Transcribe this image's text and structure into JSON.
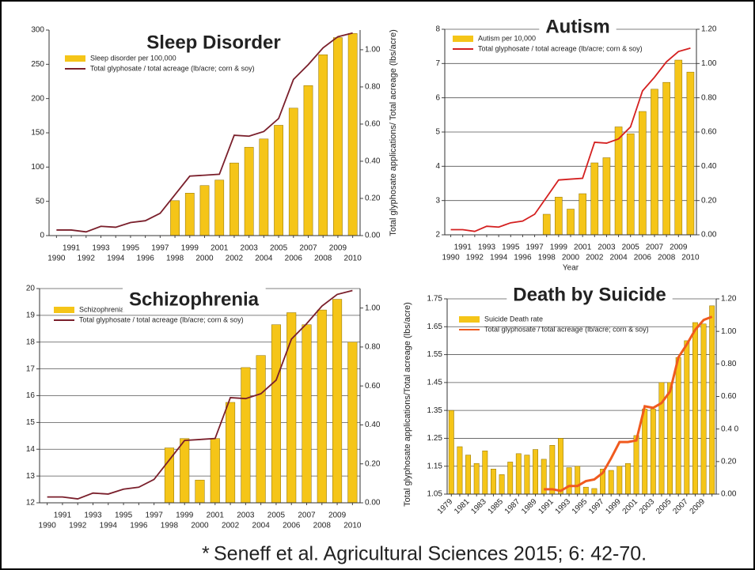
{
  "chart_data": [
    {
      "type": "combo",
      "title": "Sleep Disorder",
      "categories": [
        "1990",
        "1991",
        "1992",
        "1993",
        "1994",
        "1995",
        "1996",
        "1997",
        "1998",
        "1999",
        "2000",
        "2001",
        "2002",
        "2003",
        "2004",
        "2005",
        "2006",
        "2007",
        "2008",
        "2009",
        "2010"
      ],
      "series": [
        {
          "name": "Sleep disorder per 100,000",
          "type": "bar",
          "color": "#f5c518",
          "values": [
            null,
            null,
            null,
            null,
            null,
            null,
            null,
            null,
            51,
            62,
            73,
            81,
            106,
            129,
            141,
            161,
            186,
            219,
            264,
            289,
            295
          ]
        },
        {
          "name": "Total glyphosate / total acreage (lb/acre; corn & soy)",
          "type": "line",
          "axis": "y2",
          "color": "#7a1f2b",
          "values": [
            0.03,
            0.03,
            0.02,
            0.05,
            0.045,
            0.07,
            0.08,
            0.12,
            0.22,
            0.32,
            0.325,
            0.33,
            0.54,
            0.535,
            0.56,
            0.63,
            0.84,
            0.92,
            1.01,
            1.07,
            1.09
          ]
        }
      ],
      "y2_label": "Total glyphosate applications/ Total acreage (lbs/acre)",
      "ylim": [
        0,
        300
      ],
      "yticks": [
        0,
        50,
        100,
        150,
        200,
        250,
        300
      ],
      "y2lim": [
        0,
        1.106
      ],
      "y2ticks": [
        {
          "value": 0,
          "label": "0.00"
        },
        {
          "value": 0.2,
          "label": "0.20"
        },
        {
          "value": 0.4,
          "label": "0.40"
        },
        {
          "value": 0.6,
          "label": "0.60"
        },
        {
          "value": 0.8,
          "label": "0.80"
        },
        {
          "value": 1,
          "label": "1.00"
        }
      ],
      "grid": false
    },
    {
      "type": "combo",
      "title": "Autism",
      "categories": [
        "1990",
        "1991",
        "1992",
        "1993",
        "1994",
        "1995",
        "1996",
        "1997",
        "1998",
        "1999",
        "2000",
        "2001",
        "2002",
        "2003",
        "2004",
        "2005",
        "2006",
        "2007",
        "2008",
        "2009",
        "2010"
      ],
      "series": [
        {
          "name": "Autism per 10,000",
          "type": "bar",
          "color": "#f5c518",
          "values": [
            null,
            null,
            null,
            null,
            null,
            null,
            null,
            null,
            2.6,
            3.1,
            2.75,
            3.2,
            4.1,
            4.25,
            5.15,
            4.95,
            5.6,
            6.25,
            6.45,
            7.1,
            6.75
          ]
        },
        {
          "name": "Total glyphosate / total acreage (lb/acre; corn & soy)",
          "type": "line",
          "axis": "y2",
          "color": "#d42020",
          "values": [
            0.03,
            0.03,
            0.02,
            0.05,
            0.045,
            0.07,
            0.08,
            0.12,
            0.22,
            0.32,
            0.325,
            0.33,
            0.54,
            0.535,
            0.56,
            0.63,
            0.84,
            0.92,
            1.01,
            1.07,
            1.09
          ]
        }
      ],
      "x_label": "Year",
      "ylim": [
        2,
        8
      ],
      "yticks": [
        2,
        3,
        4,
        5,
        6,
        7,
        8
      ],
      "y2lim": [
        0,
        1.2
      ],
      "y2ticks": [
        {
          "value": 0,
          "label": "0.00"
        },
        {
          "value": 0.2,
          "label": "0.20"
        },
        {
          "value": 0.4,
          "label": "0.40"
        },
        {
          "value": 0.6,
          "label": "0.60"
        },
        {
          "value": 0.8,
          "label": "0.80"
        },
        {
          "value": 1,
          "label": "1.00"
        },
        {
          "value": 1.2,
          "label": "1.20"
        }
      ],
      "grid": true
    },
    {
      "type": "combo",
      "title": "Schizophrenia",
      "categories": [
        "1990",
        "1991",
        "1992",
        "1993",
        "1994",
        "1995",
        "1996",
        "1997",
        "1998",
        "1999",
        "2000",
        "2001",
        "2002",
        "2003",
        "2004",
        "2005",
        "2006",
        "2007",
        "2008",
        "2009",
        "2010"
      ],
      "series": [
        {
          "name": "Schizophrenia",
          "type": "bar",
          "color": "#f5c518",
          "values": [
            null,
            null,
            null,
            null,
            null,
            null,
            null,
            null,
            14.05,
            14.4,
            12.85,
            14.4,
            15.75,
            17.05,
            17.5,
            18.65,
            19.1,
            18.65,
            19.2,
            19.6,
            18.0
          ]
        },
        {
          "name": "Total glyphosate / total acreage (lb/acre; corn & soy)",
          "type": "line",
          "axis": "y2",
          "color": "#7a1f2b",
          "values": [
            0.03,
            0.03,
            0.02,
            0.05,
            0.045,
            0.07,
            0.08,
            0.12,
            0.22,
            0.32,
            0.325,
            0.33,
            0.54,
            0.535,
            0.56,
            0.63,
            0.84,
            0.92,
            1.01,
            1.07,
            1.09
          ]
        }
      ],
      "ylim": [
        12,
        20
      ],
      "yticks": [
        12,
        13,
        14,
        15,
        16,
        17,
        18,
        19,
        20
      ],
      "y2lim": [
        0,
        1.1
      ],
      "y2ticks": [
        {
          "value": 0,
          "label": "0.00"
        },
        {
          "value": 0.2,
          "label": "0.20"
        },
        {
          "value": 0.4,
          "label": "0.40"
        },
        {
          "value": 0.6,
          "label": "0.60"
        },
        {
          "value": 0.8,
          "label": "0.80"
        },
        {
          "value": 1,
          "label": "1.00"
        }
      ],
      "grid": true
    },
    {
      "type": "combo",
      "title": "Death by Suicide",
      "categories": [
        "1979",
        null,
        "1981",
        null,
        "1983",
        null,
        "1985",
        null,
        "1987",
        null,
        "1989",
        null,
        "1991",
        null,
        "1993",
        null,
        "1995",
        null,
        "1997",
        null,
        "1999",
        null,
        "2001",
        null,
        "2003",
        null,
        "2005",
        null,
        "2007",
        null,
        "2009",
        null
      ],
      "series": [
        {
          "name": "Suicide Death rate",
          "type": "bar",
          "color": "#f5c518",
          "values": [
            1.35,
            1.22,
            1.19,
            1.16,
            1.205,
            1.14,
            1.12,
            1.165,
            1.195,
            1.19,
            1.21,
            1.175,
            1.225,
            1.25,
            1.145,
            1.15,
            1.075,
            1.07,
            1.14,
            1.135,
            1.15,
            1.16,
            1.26,
            1.355,
            1.355,
            1.45,
            1.45,
            1.54,
            1.6,
            1.665,
            1.66,
            1.725
          ]
        },
        {
          "name": "Total glyphosate / total acreage (lb/acre; corn & soy)",
          "type": "line",
          "axis": "y2",
          "color": "#f05a1e",
          "values": [
            null,
            null,
            null,
            null,
            null,
            null,
            null,
            null,
            null,
            null,
            null,
            0.03,
            0.03,
            0.02,
            0.05,
            0.05,
            0.08,
            0.09,
            0.13,
            0.22,
            0.32,
            0.32,
            0.33,
            0.54,
            0.53,
            0.56,
            0.63,
            0.84,
            0.92,
            1.01,
            1.07,
            1.09
          ]
        }
      ],
      "y_label": "Total glyphosate applications/Total acreage (lbs/acre)",
      "ylim": [
        1.05,
        1.75
      ],
      "yticks": [
        1.05,
        1.15,
        1.25,
        1.35,
        1.45,
        1.55,
        1.65,
        1.75
      ],
      "y2lim": [
        0,
        1.2
      ],
      "y2ticks": [
        {
          "value": 0,
          "label": "0.00"
        },
        {
          "value": 0.2,
          "label": "0.20"
        },
        {
          "value": 0.4,
          "label": "0.4 0"
        },
        {
          "value": 0.6,
          "label": "0.60"
        },
        {
          "value": 0.8,
          "label": "0.80"
        },
        {
          "value": 1,
          "label": "1.00"
        },
        {
          "value": 1.2,
          "label": "1.20"
        }
      ],
      "grid": true
    }
  ],
  "citation": {
    "mark": "*",
    "text": "Seneff et al. Agricultural Sciences 2015; 6: 42-70."
  }
}
